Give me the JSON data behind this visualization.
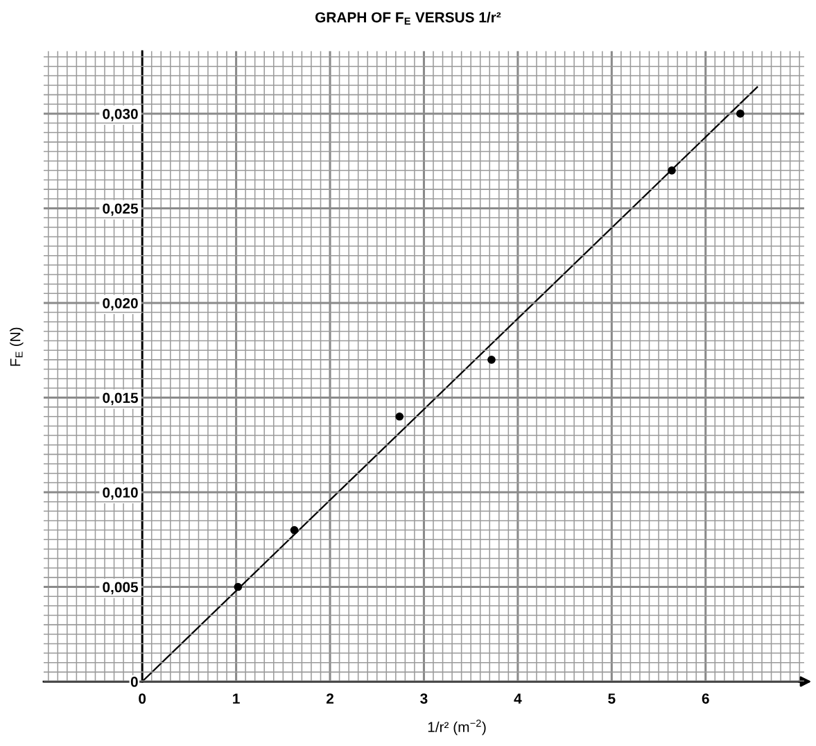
{
  "chart_data": {
    "type": "scatter",
    "title": "GRAPH OF F$_{E}$ VERSUS 1/r²",
    "xlabel": "1/r² (m$^{−2}$)",
    "ylabel": "F$_{E}$ (N)",
    "xlim": [
      -1.05,
      7.05
    ],
    "ylim": [
      0,
      0.0333
    ],
    "xticks": [
      0,
      1,
      2,
      3,
      4,
      5,
      6
    ],
    "yticks": [
      {
        "value": 0,
        "label": "0"
      },
      {
        "value": 0.005,
        "label": "0,005"
      },
      {
        "value": 0.01,
        "label": "0,010"
      },
      {
        "value": 0.015,
        "label": "0,015"
      },
      {
        "value": 0.02,
        "label": "0,020"
      },
      {
        "value": 0.025,
        "label": "0,025"
      },
      {
        "value": 0.03,
        "label": "0,030"
      }
    ],
    "grid": true,
    "series": [
      {
        "marker": "circle",
        "color": "#000000",
        "x": [
          1.02,
          1.62,
          2.74,
          3.72,
          5.64,
          6.37
        ],
        "values": [
          0.005,
          0.008,
          0.014,
          0.017,
          0.027,
          0.03
        ]
      },
      {
        "type": "line",
        "marker": "none",
        "color": "#000000",
        "x": [
          0,
          6.55
        ],
        "values": [
          0,
          0.0314
        ]
      }
    ]
  }
}
